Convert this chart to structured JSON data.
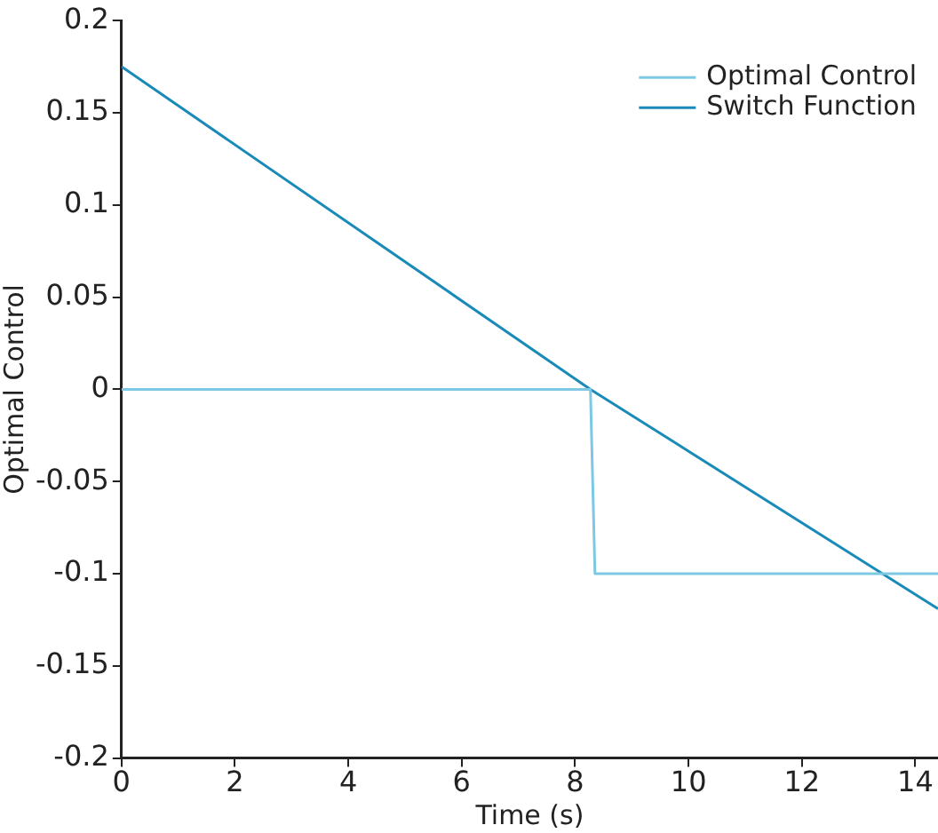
{
  "chart_data": {
    "type": "line",
    "xlabel": "Time (s)",
    "ylabel": "Optimal Control",
    "xlim": [
      0,
      14.4
    ],
    "xticks": [
      0,
      2,
      4,
      6,
      8,
      10,
      12,
      14
    ],
    "ylim": [
      -0.2,
      0.2
    ],
    "yticks": [
      {
        "value": -0.2,
        "label": "-0.2"
      },
      {
        "value": -0.15,
        "label": "-0.15"
      },
      {
        "value": -0.1,
        "label": "-0.1"
      },
      {
        "value": -0.05,
        "label": "-0.05"
      },
      {
        "value": 0,
        "label": "0"
      },
      {
        "value": 0.05,
        "label": "0.05"
      },
      {
        "value": 0.1,
        "label": "0.1"
      },
      {
        "value": 0.15,
        "label": "0.15"
      },
      {
        "value": 0.2,
        "label": "0.2"
      }
    ],
    "grid": false,
    "legend": "top right",
    "series": [
      {
        "name": "Optimal Control",
        "color": "#7ec8e3",
        "x": [
          0,
          8.27,
          8.35,
          14.4
        ],
        "values": [
          0,
          0,
          -0.1,
          -0.1
        ]
      },
      {
        "name": "Switch Function",
        "color": "#1a8ab8",
        "x": [
          0,
          8.27,
          14.4
        ],
        "values": [
          0.175,
          0,
          -0.119
        ]
      }
    ]
  }
}
